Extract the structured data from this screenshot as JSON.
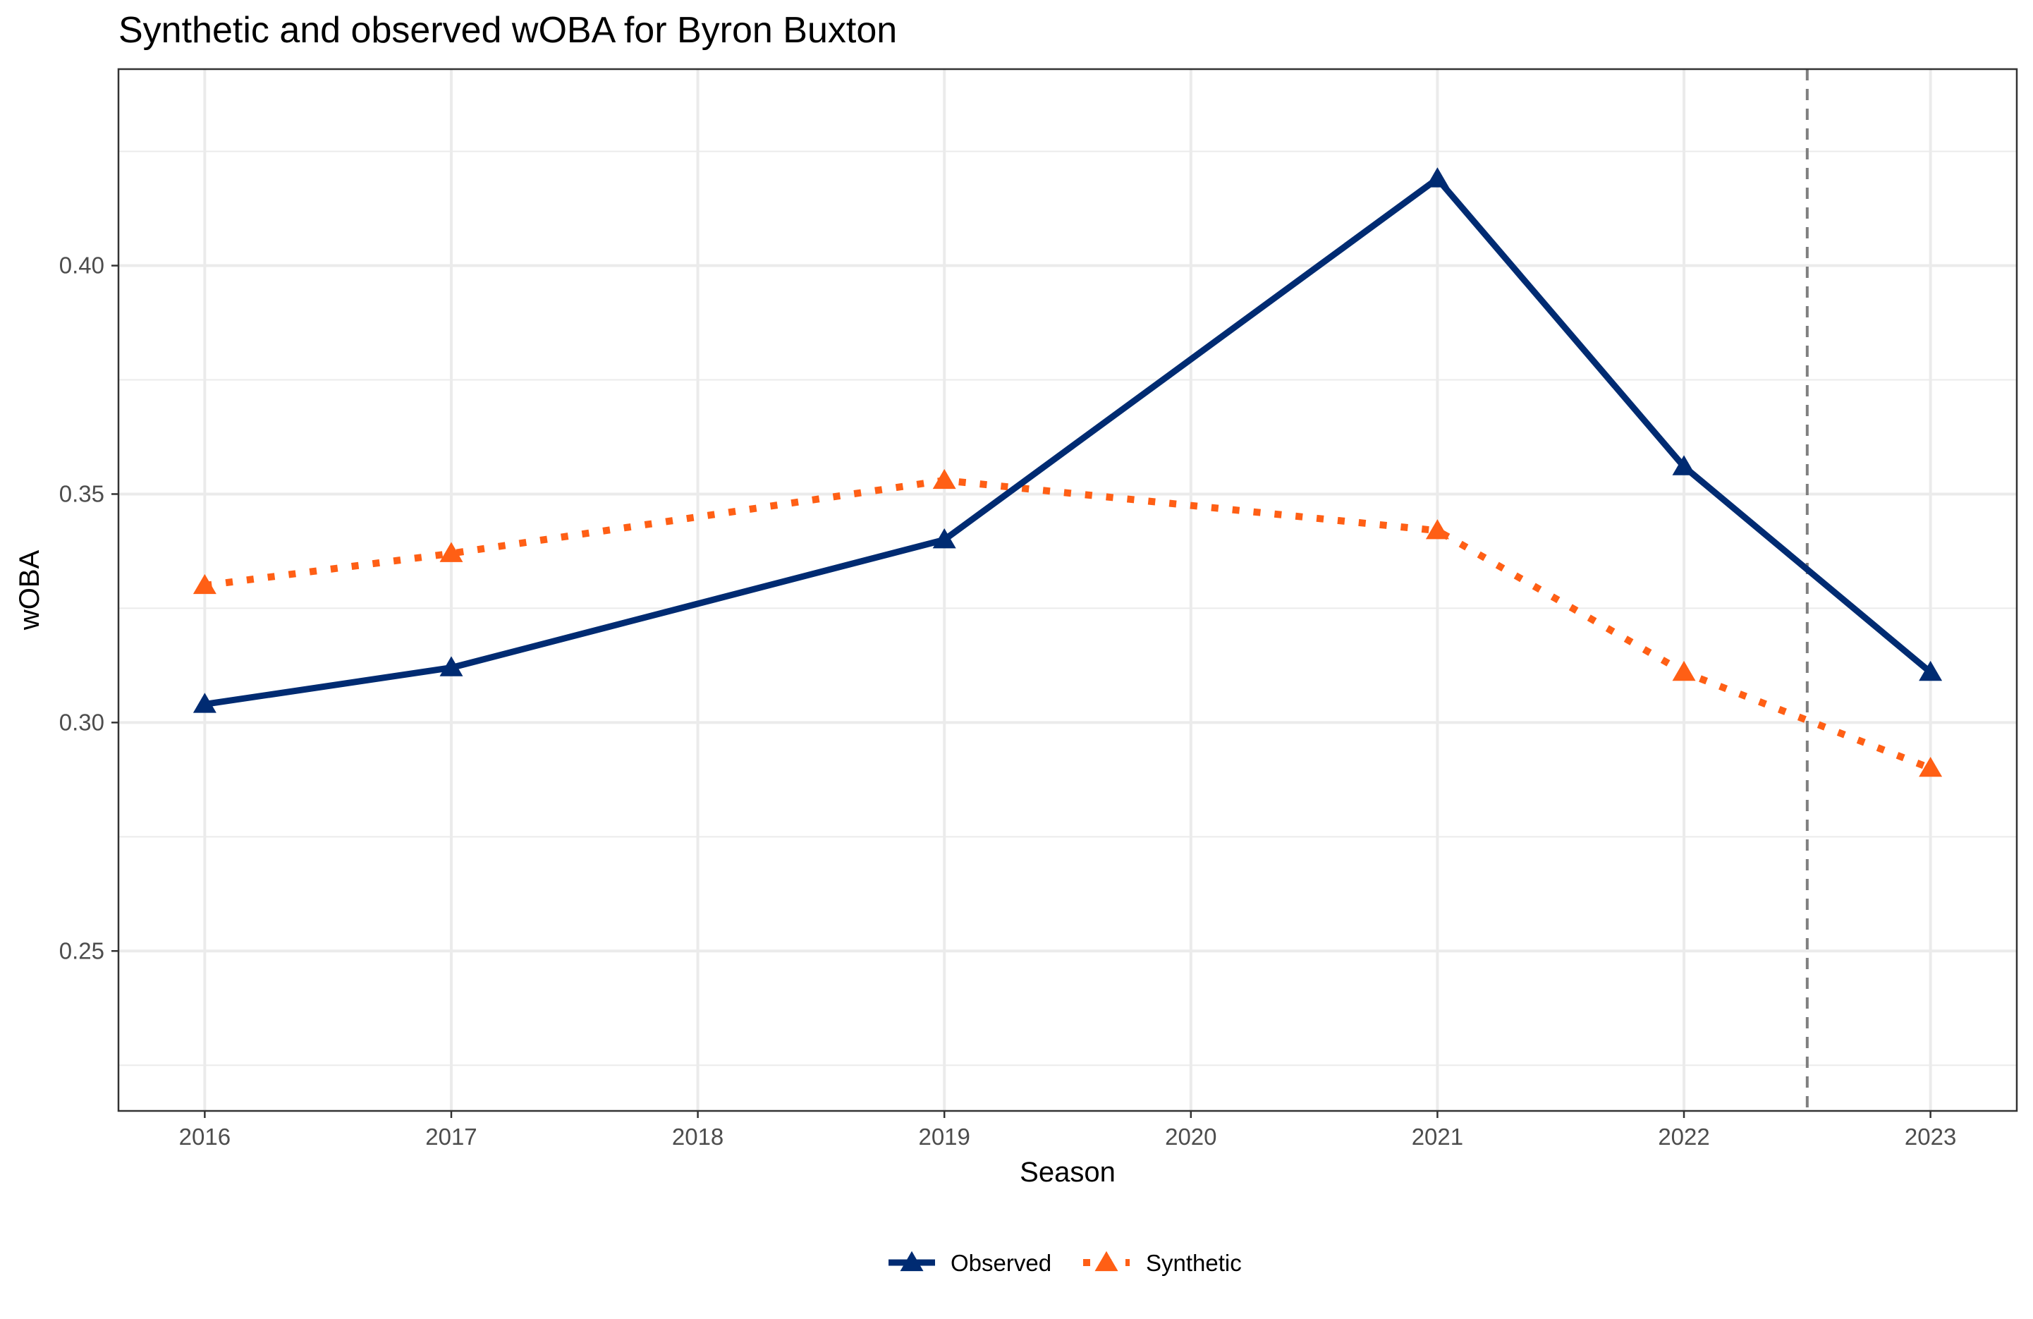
{
  "chart_data": {
    "type": "line",
    "title": "Synthetic and observed wOBA for Byron Buxton",
    "xlabel": "Season",
    "ylabel": "wOBA",
    "x_ticks": [
      "2016",
      "2017",
      "2018",
      "2019",
      "2020",
      "2021",
      "2022",
      "2023"
    ],
    "y_ticks": [
      "0.25",
      "0.30",
      "0.35",
      "0.40"
    ],
    "xlim": [
      2015.65,
      2023.35
    ],
    "ylim": [
      0.215,
      0.443
    ],
    "grid": true,
    "legend_position": "bottom",
    "treatment_line": {
      "x": 2022.5,
      "style": "dashed",
      "color": "#7f7f7f"
    },
    "series": [
      {
        "name": "Observed",
        "color": "#002B72",
        "line_style": "solid",
        "marker": "triangle",
        "x": [
          2016,
          2017,
          2019,
          2021,
          2022,
          2023
        ],
        "values": [
          0.304,
          0.312,
          0.34,
          0.419,
          0.356,
          0.311
        ]
      },
      {
        "name": "Synthetic",
        "color": "#FF5F15",
        "line_style": "dotted",
        "marker": "triangle",
        "x": [
          2016,
          2017,
          2019,
          2021,
          2022,
          2023
        ],
        "values": [
          0.33,
          0.337,
          0.353,
          0.342,
          0.311,
          0.29
        ]
      }
    ]
  }
}
